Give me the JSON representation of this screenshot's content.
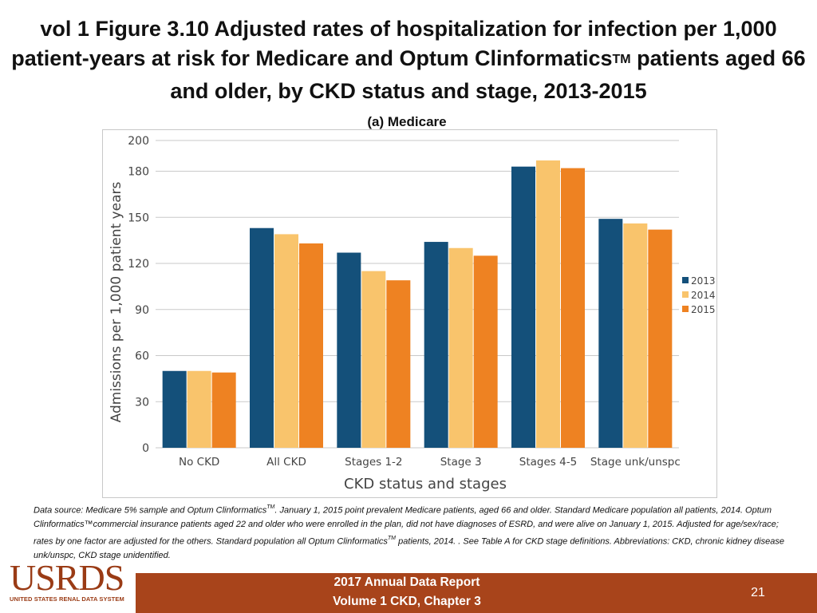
{
  "header": {
    "title_part1": "vol 1 Figure 3.10 Adjusted rates of hospitalization for infection per 1,000 patient-years at risk for Medicare and Optum Clinformatics",
    "title_sup": "TM",
    "title_part2": " patients aged 66 and older, by CKD status and stage, 2013-2015",
    "subtitle": "(a)   Medicare"
  },
  "chart_data": {
    "type": "bar",
    "title": "(a) Medicare",
    "categories": [
      "No CKD",
      "All CKD",
      "Stages 1-2",
      "Stage 3",
      "Stages 4-5",
      "Stage unk/unspc"
    ],
    "series": [
      {
        "name": "2013",
        "color": "#14507a",
        "values": [
          50,
          143,
          127,
          134,
          183,
          149
        ]
      },
      {
        "name": "2014",
        "color": "#f9c46c",
        "values": [
          50,
          139,
          115,
          130,
          187,
          146
        ]
      },
      {
        "name": "2015",
        "color": "#ee8222",
        "values": [
          49,
          133,
          109,
          125,
          182,
          142
        ]
      }
    ],
    "xlabel": "CKD status and stages",
    "ylabel": "Admissions per 1,000 patient years",
    "ylim": [
      0,
      200
    ],
    "yticks": [
      0,
      30,
      60,
      90,
      120,
      150,
      180,
      200
    ],
    "grid": true,
    "legend": "right"
  },
  "footnote": {
    "part1": "Data source: Medicare 5% sample and Optum Clinformatics",
    "sup1": "TM",
    "part2": ". January 1, 2015 point prevalent Medicare patients, aged 66 and older. Standard Medicare population all patients, 2014. Optum Clinformatics™commercial insurance patients aged 22 and older who were enrolled in the plan, did not have diagnoses of ESRD, and were alive on January 1, 2015. Adjusted for age/sex/race; rates by one factor are adjusted for the others. Standard population all Optum Clinformatics",
    "sup2": "TM",
    "part3": " patients, 2014. . See Table A for CKD stage definitions. Abbreviations: CKD, chronic kidney disease unk/unspc, CKD stage unidentified."
  },
  "footer": {
    "logo_text": "USRDS",
    "logo_subtext": "UNITED STATES RENAL DATA SYSTEM",
    "line1": "2017 Annual Data Report",
    "line2": "Volume 1 CKD, Chapter 3",
    "page_number": "21"
  }
}
